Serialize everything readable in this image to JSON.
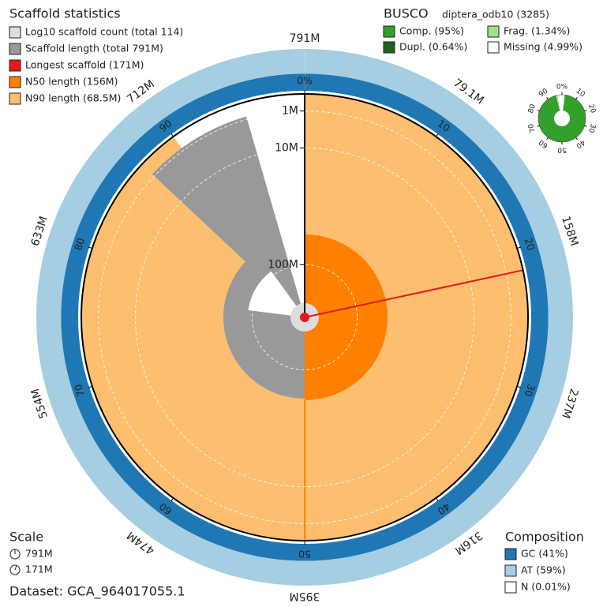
{
  "chart_data": {
    "type": "snail",
    "title": "Scaffold statistics",
    "legend": [
      {
        "name": "Log10 scaffold count (total 114)",
        "color": "#dddddd"
      },
      {
        "name": "Scaffold length (total 791M)",
        "color": "#999999"
      },
      {
        "name": "Longest scaffold (171M)",
        "color": "#e31a1c"
      },
      {
        "name": "N50 length (156M)",
        "color": "#ff7f00"
      },
      {
        "name": "N90 length (68.5M)",
        "color": "#fdbf6f"
      }
    ],
    "total": 791000000,
    "longest": 171000000,
    "n50": {
      "length": 156000000,
      "percent": 50
    },
    "n90": {
      "length": 68500000,
      "percent": 90
    },
    "xlim": [
      0,
      100
    ],
    "xticks": [
      {
        "value": 0,
        "label": "0%"
      },
      10,
      20,
      30,
      40,
      50,
      60,
      70,
      80,
      90
    ],
    "x2ticks": [
      {
        "value": 0,
        "label": "791M"
      },
      {
        "value": 10,
        "label": "79.1M"
      },
      {
        "value": 20,
        "label": "158M"
      },
      {
        "value": 30,
        "label": "237M"
      },
      {
        "value": 40,
        "label": "316M"
      },
      {
        "value": 50,
        "label": "395M"
      },
      {
        "value": 60,
        "label": "474M"
      },
      {
        "value": 70,
        "label": "554M"
      },
      {
        "value": 80,
        "label": "633M"
      },
      {
        "value": 90,
        "label": "712M"
      }
    ],
    "ylim": [
      0,
      171000000
    ],
    "yticks": [
      {
        "value": 1000000,
        "label": "1M"
      },
      {
        "value": 10000000,
        "label": "10M"
      },
      {
        "value": 100000000,
        "label": "100M"
      }
    ],
    "busco": {
      "title": "BUSCO",
      "lineage": "diptera_odb10 (3285)",
      "series": [
        {
          "name": "Comp. (95%)",
          "color": "#33a02c",
          "value": 95
        },
        {
          "name": "Dupl. (0.64%)",
          "color": "#20641c",
          "value": 0.64
        },
        {
          "name": "Frag. (1.34%)",
          "color": "#a3e287",
          "value": 1.34
        },
        {
          "name": "Missing (4.99%)",
          "color": "#ffffff",
          "value": 4.99
        }
      ],
      "ticks": [
        {
          "value": 0,
          "label": "0%"
        },
        10,
        20,
        30,
        40,
        50,
        60,
        70,
        80,
        90
      ]
    },
    "composition": {
      "title": "Composition",
      "series": [
        {
          "name": "GC (41%)",
          "color": "#1f78b4",
          "value": 41
        },
        {
          "name": "AT (59%)",
          "color": "#a6cee3",
          "value": 59
        },
        {
          "name": "N (0.01%)",
          "color": "#ffffff",
          "value": 0.01
        }
      ]
    },
    "scale": {
      "title": "Scale",
      "labels": [
        "791M",
        "171M"
      ]
    },
    "dataset": "Dataset: GCA_964017055.1"
  }
}
